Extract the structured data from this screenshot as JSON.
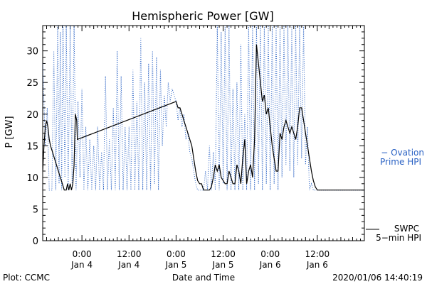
{
  "chart_data": {
    "type": "line",
    "title": "Hemispheric Power [GW]",
    "ylabel": "P [GW]",
    "xlabel": "Date and Time",
    "ylim": [
      0,
      34
    ],
    "y_ticks": [
      0,
      5,
      10,
      15,
      20,
      25,
      30
    ],
    "x_range": [
      "2020-01-03T14:00",
      "2020-01-07T00:00"
    ],
    "x_ticks": [
      {
        "t": "2020-01-04T00:00",
        "time": "0:00",
        "date": "Jan 4"
      },
      {
        "t": "2020-01-04T12:00",
        "time": "12:00",
        "date": "Jan 4"
      },
      {
        "t": "2020-01-05T00:00",
        "time": "0:00",
        "date": "Jan 5"
      },
      {
        "t": "2020-01-05T12:00",
        "time": "12:00",
        "date": "Jan 5"
      },
      {
        "t": "2020-01-06T00:00",
        "time": "0:00",
        "date": "Jan 6"
      },
      {
        "t": "2020-01-06T12:00",
        "time": "12:00",
        "date": "Jan 6"
      }
    ],
    "legend_position": "right",
    "series": [
      {
        "name": "SWPC 5-min HPI",
        "legend_lines": [
          "SWPC",
          "5−min HPI"
        ],
        "color": "#000000",
        "style": "solid",
        "points": [
          [
            "2020-01-03T14:00",
            11
          ],
          [
            "2020-01-03T14:20",
            15
          ],
          [
            "2020-01-03T14:40",
            18
          ],
          [
            "2020-01-03T15:00",
            19
          ],
          [
            "2020-01-03T15:20",
            18
          ],
          [
            "2020-01-03T15:40",
            16
          ],
          [
            "2020-01-03T16:00",
            15
          ],
          [
            "2020-01-03T16:30",
            14
          ],
          [
            "2020-01-03T17:00",
            13
          ],
          [
            "2020-01-03T17:30",
            12
          ],
          [
            "2020-01-03T18:00",
            11
          ],
          [
            "2020-01-03T18:30",
            10
          ],
          [
            "2020-01-03T19:00",
            9
          ],
          [
            "2020-01-03T19:30",
            8
          ],
          [
            "2020-01-03T20:00",
            8
          ],
          [
            "2020-01-03T20:20",
            9
          ],
          [
            "2020-01-03T20:40",
            8
          ],
          [
            "2020-01-03T21:00",
            9
          ],
          [
            "2020-01-03T21:20",
            8
          ],
          [
            "2020-01-03T21:40",
            9
          ],
          [
            "2020-01-03T22:00",
            12
          ],
          [
            "2020-01-03T22:10",
            16
          ],
          [
            "2020-01-03T22:20",
            20
          ],
          [
            "2020-01-03T22:40",
            19
          ],
          [
            "2020-01-03T22:50",
            16
          ],
          [
            "2020-01-05T00:00",
            22
          ],
          [
            "2020-01-05T00:30",
            21
          ],
          [
            "2020-01-05T01:00",
            21
          ],
          [
            "2020-01-05T01:30",
            20
          ],
          [
            "2020-01-05T02:00",
            19
          ],
          [
            "2020-01-05T02:30",
            18
          ],
          [
            "2020-01-05T03:00",
            17
          ],
          [
            "2020-01-05T03:30",
            16
          ],
          [
            "2020-01-05T04:00",
            15
          ],
          [
            "2020-01-05T04:30",
            13
          ],
          [
            "2020-01-05T05:00",
            11
          ],
          [
            "2020-01-05T05:30",
            9.5
          ],
          [
            "2020-01-05T06:00",
            9
          ],
          [
            "2020-01-05T06:30",
            9
          ],
          [
            "2020-01-05T07:00",
            8
          ],
          [
            "2020-01-05T08:30",
            8
          ],
          [
            "2020-01-05T09:00",
            8.5
          ],
          [
            "2020-01-05T09:30",
            10
          ],
          [
            "2020-01-05T10:00",
            12
          ],
          [
            "2020-01-05T10:30",
            11
          ],
          [
            "2020-01-05T11:00",
            12
          ],
          [
            "2020-01-05T11:30",
            10
          ],
          [
            "2020-01-05T12:00",
            9.5
          ],
          [
            "2020-01-05T12:30",
            9
          ],
          [
            "2020-01-05T13:00",
            9
          ],
          [
            "2020-01-05T13:30",
            11
          ],
          [
            "2020-01-05T14:00",
            10
          ],
          [
            "2020-01-05T14:30",
            9
          ],
          [
            "2020-01-05T15:00",
            9
          ],
          [
            "2020-01-05T15:30",
            12
          ],
          [
            "2020-01-05T16:00",
            11
          ],
          [
            "2020-01-05T16:30",
            9
          ],
          [
            "2020-01-05T17:00",
            13
          ],
          [
            "2020-01-05T17:30",
            16
          ],
          [
            "2020-01-05T18:00",
            9
          ],
          [
            "2020-01-05T18:30",
            11
          ],
          [
            "2020-01-05T19:00",
            12
          ],
          [
            "2020-01-05T19:30",
            10
          ],
          [
            "2020-01-05T20:00",
            16
          ],
          [
            "2020-01-05T20:30",
            31
          ],
          [
            "2020-01-05T21:00",
            28
          ],
          [
            "2020-01-05T21:30",
            25
          ],
          [
            "2020-01-05T22:00",
            22
          ],
          [
            "2020-01-05T22:30",
            23
          ],
          [
            "2020-01-05T23:00",
            20
          ],
          [
            "2020-01-05T23:30",
            21
          ],
          [
            "2020-01-06T00:00",
            18
          ],
          [
            "2020-01-06T00:30",
            15
          ],
          [
            "2020-01-06T01:00",
            13
          ],
          [
            "2020-01-06T01:30",
            11
          ],
          [
            "2020-01-06T02:00",
            11
          ],
          [
            "2020-01-06T02:30",
            17
          ],
          [
            "2020-01-06T03:00",
            16
          ],
          [
            "2020-01-06T03:30",
            18
          ],
          [
            "2020-01-06T04:00",
            19
          ],
          [
            "2020-01-06T04:30",
            18
          ],
          [
            "2020-01-06T05:00",
            17
          ],
          [
            "2020-01-06T05:30",
            18
          ],
          [
            "2020-01-06T06:00",
            17
          ],
          [
            "2020-01-06T06:30",
            16
          ],
          [
            "2020-01-06T07:00",
            18
          ],
          [
            "2020-01-06T07:30",
            21
          ],
          [
            "2020-01-06T08:00",
            21
          ],
          [
            "2020-01-06T08:30",
            19
          ],
          [
            "2020-01-06T09:00",
            17
          ],
          [
            "2020-01-06T09:30",
            15
          ],
          [
            "2020-01-06T10:00",
            13
          ],
          [
            "2020-01-06T10:30",
            11
          ],
          [
            "2020-01-06T11:00",
            9.5
          ],
          [
            "2020-01-06T11:30",
            8.5
          ],
          [
            "2020-01-06T12:00",
            8
          ],
          [
            "2020-01-07T00:00",
            8
          ]
        ]
      },
      {
        "name": "Ovation Prime HPI",
        "legend_lines": [
          "− Ovation",
          "Prime HPI"
        ],
        "color": "#2a62c4",
        "style": "dotted",
        "points": [
          [
            "2020-01-03T14:00",
            28
          ],
          [
            "2020-01-03T14:40",
            15
          ],
          [
            "2020-01-03T15:10",
            21
          ],
          [
            "2020-01-03T15:40",
            8
          ],
          [
            "2020-01-03T16:20",
            8
          ],
          [
            "2020-01-03T16:50",
            30
          ],
          [
            "2020-01-03T17:20",
            8
          ],
          [
            "2020-01-03T17:50",
            34
          ],
          [
            "2020-01-03T18:10",
            9
          ],
          [
            "2020-01-03T18:30",
            33
          ],
          [
            "2020-01-03T18:50",
            8
          ],
          [
            "2020-01-03T19:10",
            34
          ],
          [
            "2020-01-03T19:40",
            10
          ],
          [
            "2020-01-03T20:00",
            34
          ],
          [
            "2020-01-03T20:30",
            8
          ],
          [
            "2020-01-03T21:00",
            34
          ],
          [
            "2020-01-03T21:30",
            9
          ],
          [
            "2020-01-03T22:00",
            34
          ],
          [
            "2020-01-03T22:30",
            8
          ],
          [
            "2020-01-03T23:00",
            22
          ],
          [
            "2020-01-03T23:30",
            10
          ],
          [
            "2020-01-04T00:00",
            24
          ],
          [
            "2020-01-04T00:30",
            8
          ],
          [
            "2020-01-04T01:00",
            18
          ],
          [
            "2020-01-04T01:30",
            8
          ],
          [
            "2020-01-04T02:00",
            16
          ],
          [
            "2020-01-04T02:30",
            8
          ],
          [
            "2020-01-04T03:00",
            15
          ],
          [
            "2020-01-04T03:30",
            8
          ],
          [
            "2020-01-04T04:00",
            18
          ],
          [
            "2020-01-04T04:30",
            8
          ],
          [
            "2020-01-04T05:00",
            14
          ],
          [
            "2020-01-04T05:30",
            8
          ],
          [
            "2020-01-04T06:00",
            26
          ],
          [
            "2020-01-04T06:30",
            8
          ],
          [
            "2020-01-04T07:00",
            16
          ],
          [
            "2020-01-04T07:30",
            8
          ],
          [
            "2020-01-04T08:00",
            21
          ],
          [
            "2020-01-04T08:30",
            8
          ],
          [
            "2020-01-04T09:00",
            30
          ],
          [
            "2020-01-04T09:30",
            8
          ],
          [
            "2020-01-04T10:00",
            26
          ],
          [
            "2020-01-04T10:30",
            8
          ],
          [
            "2020-01-04T11:00",
            18
          ],
          [
            "2020-01-04T11:30",
            8
          ],
          [
            "2020-01-04T12:00",
            18
          ],
          [
            "2020-01-04T12:30",
            8
          ],
          [
            "2020-01-04T13:00",
            27
          ],
          [
            "2020-01-04T13:30",
            8
          ],
          [
            "2020-01-04T14:00",
            22
          ],
          [
            "2020-01-04T14:30",
            8
          ],
          [
            "2020-01-04T15:00",
            32
          ],
          [
            "2020-01-04T15:30",
            8
          ],
          [
            "2020-01-04T16:00",
            25
          ],
          [
            "2020-01-04T16:30",
            8
          ],
          [
            "2020-01-04T17:00",
            28
          ],
          [
            "2020-01-04T17:30",
            8
          ],
          [
            "2020-01-04T18:00",
            30
          ],
          [
            "2020-01-04T18:30",
            9
          ],
          [
            "2020-01-04T19:00",
            29
          ],
          [
            "2020-01-04T19:30",
            8
          ],
          [
            "2020-01-04T20:00",
            27
          ],
          [
            "2020-01-04T20:30",
            15
          ],
          [
            "2020-01-04T21:00",
            23
          ],
          [
            "2020-01-04T21:30",
            18
          ],
          [
            "2020-01-04T22:00",
            25
          ],
          [
            "2020-01-04T22:30",
            22
          ],
          [
            "2020-01-04T23:00",
            24
          ],
          [
            "2020-01-05T00:00",
            22
          ],
          [
            "2020-01-05T00:30",
            19
          ],
          [
            "2020-01-05T01:00",
            21
          ],
          [
            "2020-01-05T01:30",
            18
          ],
          [
            "2020-01-05T02:00",
            20
          ],
          [
            "2020-01-05T02:30",
            16
          ],
          [
            "2020-01-05T03:00",
            17
          ],
          [
            "2020-01-05T03:30",
            14
          ],
          [
            "2020-01-05T04:00",
            13
          ],
          [
            "2020-01-05T04:30",
            11
          ],
          [
            "2020-01-05T05:00",
            9
          ],
          [
            "2020-01-05T05:30",
            8
          ],
          [
            "2020-01-05T07:00",
            8
          ],
          [
            "2020-01-05T07:30",
            11
          ],
          [
            "2020-01-05T08:00",
            8
          ],
          [
            "2020-01-05T08:30",
            15
          ],
          [
            "2020-01-05T09:00",
            8
          ],
          [
            "2020-01-05T09:30",
            14
          ],
          [
            "2020-01-05T10:00",
            8
          ],
          [
            "2020-01-05T10:30",
            34
          ],
          [
            "2020-01-05T11:00",
            8
          ],
          [
            "2020-01-05T11:30",
            33
          ],
          [
            "2020-01-05T12:00",
            9
          ],
          [
            "2020-01-05T12:30",
            34
          ],
          [
            "2020-01-05T13:00",
            8
          ],
          [
            "2020-01-05T13:30",
            34
          ],
          [
            "2020-01-05T14:00",
            8
          ],
          [
            "2020-01-05T14:30",
            24
          ],
          [
            "2020-01-05T15:00",
            8
          ],
          [
            "2020-01-05T15:30",
            25
          ],
          [
            "2020-01-05T16:00",
            8
          ],
          [
            "2020-01-05T16:30",
            31
          ],
          [
            "2020-01-05T17:00",
            8
          ],
          [
            "2020-01-05T17:30",
            20
          ],
          [
            "2020-01-05T18:00",
            8
          ],
          [
            "2020-01-05T18:30",
            34
          ],
          [
            "2020-01-05T19:00",
            8
          ],
          [
            "2020-01-05T19:30",
            34
          ],
          [
            "2020-01-05T20:00",
            8
          ],
          [
            "2020-01-05T20:30",
            34
          ],
          [
            "2020-01-05T21:00",
            9
          ],
          [
            "2020-01-05T21:30",
            34
          ],
          [
            "2020-01-05T22:00",
            8
          ],
          [
            "2020-01-05T22:30",
            34
          ],
          [
            "2020-01-05T23:00",
            9
          ],
          [
            "2020-01-05T23:30",
            34
          ],
          [
            "2020-01-06T00:00",
            8
          ],
          [
            "2020-01-06T00:30",
            34
          ],
          [
            "2020-01-06T01:00",
            9
          ],
          [
            "2020-01-06T01:30",
            34
          ],
          [
            "2020-01-06T02:00",
            8
          ],
          [
            "2020-01-06T02:30",
            34
          ],
          [
            "2020-01-06T03:00",
            10
          ],
          [
            "2020-01-06T03:30",
            34
          ],
          [
            "2020-01-06T04:00",
            12
          ],
          [
            "2020-01-06T04:30",
            34
          ],
          [
            "2020-01-06T05:00",
            11
          ],
          [
            "2020-01-06T05:30",
            34
          ],
          [
            "2020-01-06T06:00",
            10
          ],
          [
            "2020-01-06T06:30",
            34
          ],
          [
            "2020-01-06T07:00",
            12
          ],
          [
            "2020-01-06T07:30",
            34
          ],
          [
            "2020-01-06T08:00",
            13
          ],
          [
            "2020-01-06T08:30",
            34
          ],
          [
            "2020-01-06T09:00",
            12
          ],
          [
            "2020-01-06T09:30",
            18
          ],
          [
            "2020-01-06T10:00",
            8
          ],
          [
            "2020-01-06T10:30",
            9
          ],
          [
            "2020-01-06T11:00",
            8
          ],
          [
            "2020-01-07T00:00",
            8
          ]
        ]
      }
    ]
  },
  "footer": {
    "left": "Plot: CCMC",
    "timestamp": "2020/01/06 14:40:19"
  }
}
